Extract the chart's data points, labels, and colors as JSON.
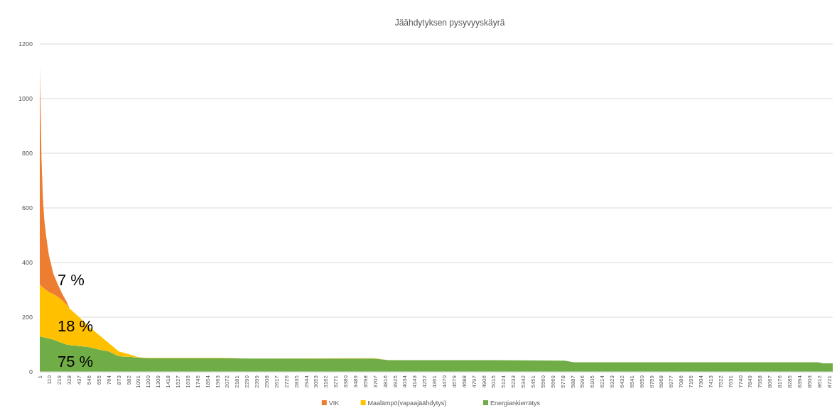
{
  "chart_data": {
    "type": "area",
    "title": "Jäähdytyksen pysyvyyskäyrä",
    "stacked": true,
    "grid": "y",
    "legend": "bottom",
    "x": [
      1,
      5,
      10,
      20,
      35,
      50,
      70,
      100,
      150,
      200,
      250,
      300,
      330,
      437,
      546,
      655,
      764,
      873,
      982,
      1091,
      1200,
      2000,
      2300,
      3700,
      3850,
      5000,
      5800,
      5900,
      8600,
      8650,
      8760
    ],
    "series": [
      {
        "name": "Energiankierrätys",
        "color": "#70ad47",
        "values": [
          130,
          130,
          129,
          128,
          127,
          126,
          125,
          122,
          118,
          112,
          105,
          100,
          98,
          95,
          90,
          82,
          75,
          57,
          55,
          52,
          50,
          50,
          49,
          49,
          43,
          43,
          41,
          35,
          35,
          31,
          31
        ]
      },
      {
        "name": "Maalämpö(vapaajäähdytys)",
        "color": "#ffc000",
        "values": [
          190,
          188,
          187,
          185,
          183,
          179,
          175,
          170,
          167,
          163,
          157,
          145,
          134,
          105,
          75,
          53,
          30,
          18,
          10,
          1,
          1,
          1,
          0,
          1,
          0,
          0,
          0,
          0,
          0,
          0,
          0
        ]
      },
      {
        "name": "VIK",
        "color": "#ed7d31",
        "values": [
          800,
          712,
          644,
          467,
          330,
          255,
          200,
          138,
          75,
          45,
          23,
          10,
          0,
          0,
          0,
          0,
          0,
          0,
          0,
          0,
          0,
          0,
          0,
          0,
          0,
          0,
          0,
          0,
          0,
          0,
          0
        ]
      }
    ],
    "xlim": [
      1,
      8760
    ],
    "ylim": [
      0,
      1200
    ],
    "yticks": [
      0,
      200,
      400,
      600,
      800,
      1000,
      1200
    ],
    "xticks": [
      1,
      110,
      219,
      328,
      437,
      546,
      655,
      764,
      873,
      982,
      1091,
      1200,
      1309,
      1418,
      1527,
      1636,
      1745,
      1854,
      1963,
      2072,
      2181,
      2290,
      2399,
      2508,
      2617,
      2726,
      2835,
      2944,
      3053,
      3162,
      3271,
      3380,
      3489,
      3598,
      3707,
      3816,
      3925,
      4034,
      4143,
      4252,
      4361,
      4470,
      4579,
      4688,
      4797,
      4906,
      5015,
      5124,
      5233,
      5342,
      5451,
      5560,
      5669,
      5778,
      5887,
      5996,
      6105,
      6214,
      6323,
      6432,
      6541,
      6650,
      6759,
      6868,
      6977,
      7086,
      7195,
      7304,
      7413,
      7522,
      7631,
      7740,
      7849,
      7958,
      8067,
      8176,
      8285,
      8394,
      8503,
      8612,
      8721
    ],
    "annotations": [
      "7 %",
      "18 %",
      "75 %"
    ]
  }
}
